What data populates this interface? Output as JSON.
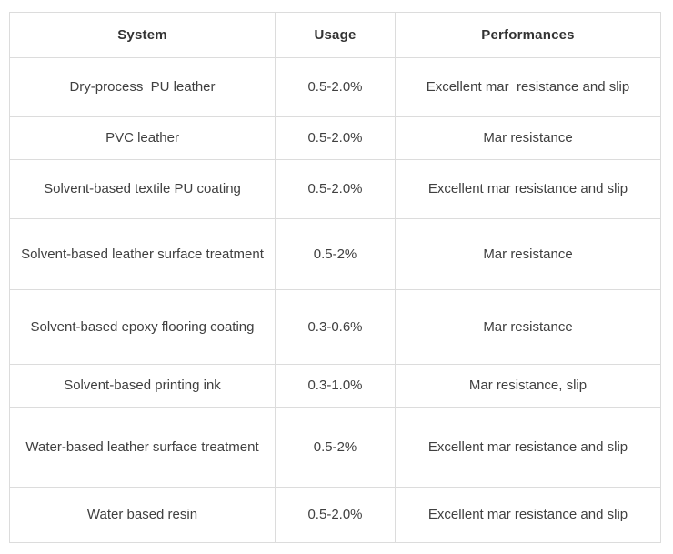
{
  "colors": {
    "background": "#ffffff",
    "border": "#dcdcdc",
    "body_text": "#404040",
    "header_text": "#333333"
  },
  "table": {
    "headers": [
      "System",
      "Usage",
      "Performances"
    ],
    "rows": [
      {
        "system": "Dry-process  PU leather",
        "usage": "0.5-2.0%",
        "performances": "Excellent mar  resistance and slip"
      },
      {
        "system": "PVC leather",
        "usage": "0.5-2.0%",
        "performances": "Mar resistance"
      },
      {
        "system": "Solvent-based textile PU coating",
        "usage": "0.5-2.0%",
        "performances": "Excellent mar resistance and slip"
      },
      {
        "system": "Solvent-based leather surface treatment",
        "usage": "0.5-2%",
        "performances": "Mar resistance"
      },
      {
        "system": "Solvent-based epoxy flooring coating",
        "usage": "0.3-0.6%",
        "performances": "Mar resistance"
      },
      {
        "system": "Solvent-based printing ink",
        "usage": "0.3-1.0%",
        "performances": "Mar resistance, slip"
      },
      {
        "system": "Water-based leather surface treatment",
        "usage": "0.5-2%",
        "performances": "Excellent mar resistance and slip"
      },
      {
        "system": "Water based resin",
        "usage": "0.5-2.0%",
        "performances": "Excellent mar resistance and slip"
      }
    ]
  }
}
